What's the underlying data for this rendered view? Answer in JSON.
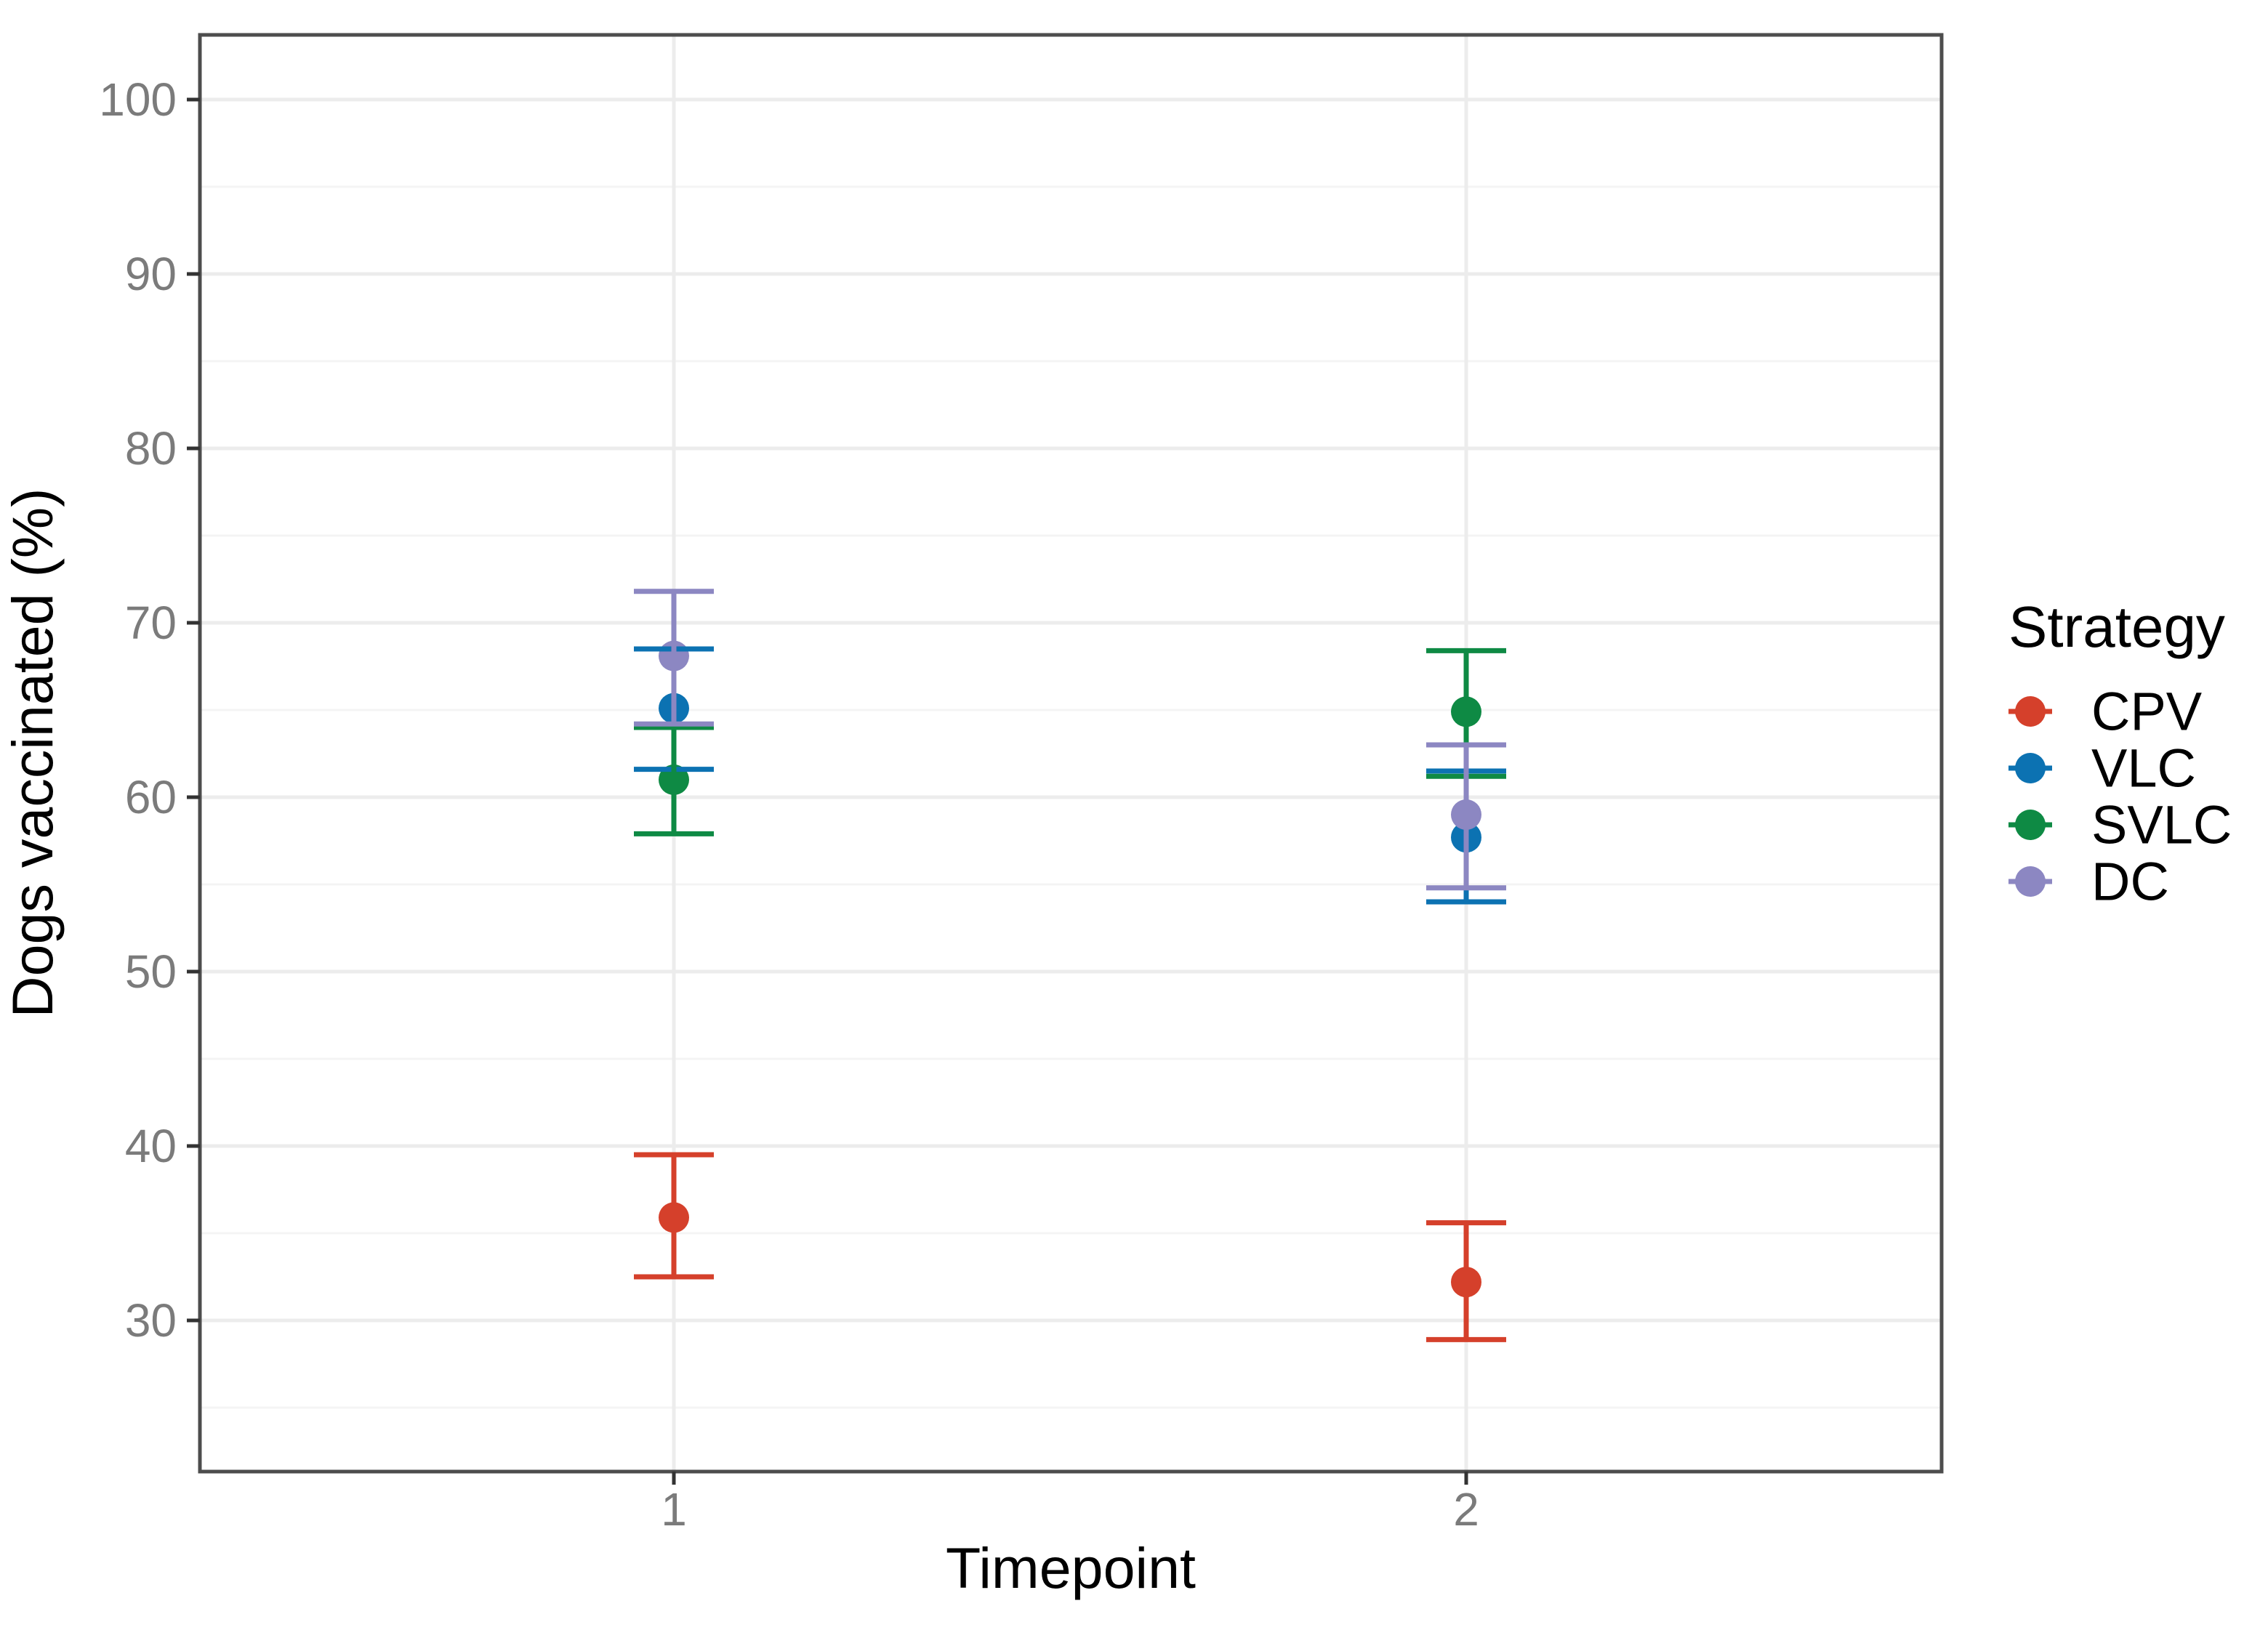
{
  "figure": {
    "background_color": "#ffffff",
    "panel_border_color": "#4d4d4d",
    "grid_major_color": "#ececec",
    "grid_minor_color": "#f4f4f4",
    "tick_mark_color": "#333333",
    "tick_label_color": "#7b7b7b",
    "title_color": "#000000"
  },
  "chart_data": {
    "type": "scatter",
    "subtype": "point-with-errorbars",
    "title": "",
    "xlabel": "Timepoint",
    "ylabel": "Dogs vaccinated (%)",
    "x_categories": [
      "1",
      "2"
    ],
    "y_ticks": [
      30,
      40,
      50,
      60,
      70,
      80,
      90,
      100
    ],
    "y_tick_labels": [
      "30",
      "40",
      "50",
      "60",
      "70",
      "80",
      "90",
      "100"
    ],
    "y_minor_ticks": [
      25,
      35,
      45,
      55,
      65,
      75,
      85,
      95
    ],
    "ylim_displayed": [
      21.3,
      104.4
    ],
    "grid": "major-and-minor-horizontal, major-vertical-at-categories",
    "legend_position": "right",
    "legend_title": "Strategy",
    "series": [
      {
        "name": "CPV",
        "color": "#d5402b",
        "points": [
          {
            "x": 1,
            "y": 35.9,
            "ci_low": 32.5,
            "ci_high": 39.5
          },
          {
            "x": 2,
            "y": 32.2,
            "ci_low": 28.9,
            "ci_high": 35.6
          }
        ]
      },
      {
        "name": "VLC",
        "color": "#0c72b2",
        "points": [
          {
            "x": 1,
            "y": 65.1,
            "ci_low": 61.6,
            "ci_high": 68.5
          },
          {
            "x": 2,
            "y": 57.7,
            "ci_low": 54.0,
            "ci_high": 61.5
          }
        ]
      },
      {
        "name": "SVLC",
        "color": "#0e8a44",
        "points": [
          {
            "x": 1,
            "y": 61.0,
            "ci_low": 57.9,
            "ci_high": 64.0
          },
          {
            "x": 2,
            "y": 64.9,
            "ci_low": 61.2,
            "ci_high": 68.4
          }
        ]
      },
      {
        "name": "DC",
        "color": "#8c87c2",
        "points": [
          {
            "x": 1,
            "y": 68.1,
            "ci_low": 64.2,
            "ci_high": 71.8
          },
          {
            "x": 2,
            "y": 59.0,
            "ci_low": 54.8,
            "ci_high": 63.0
          }
        ]
      }
    ]
  }
}
